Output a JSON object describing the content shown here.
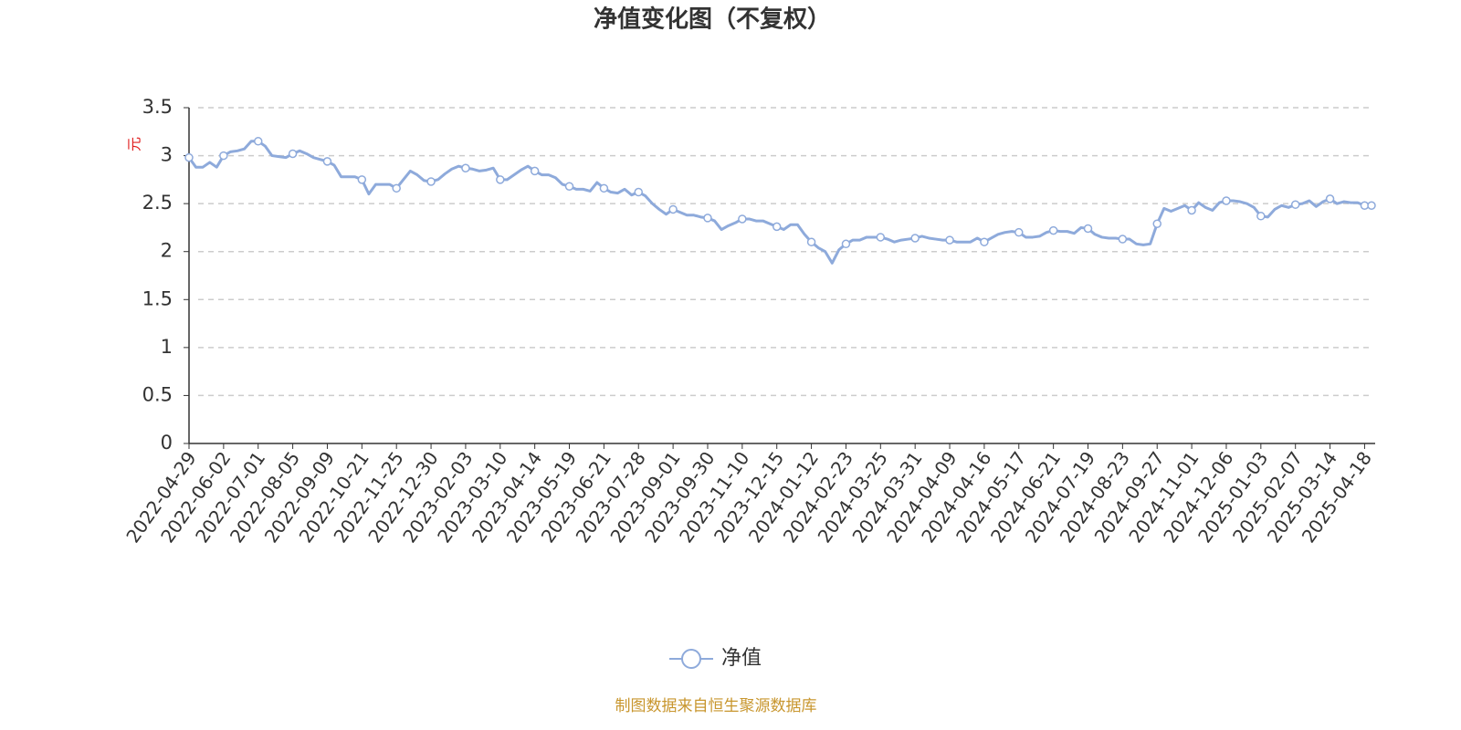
{
  "chart_data": {
    "type": "line",
    "title": "净值变化图（不复权）",
    "y_axis_label": "元",
    "source": "制图数据来自恒生聚源数据库",
    "categories": [
      "2022-04-29",
      null,
      null,
      null,
      null,
      "2022-06-02",
      null,
      null,
      null,
      null,
      "2022-07-01",
      null,
      null,
      null,
      null,
      "2022-08-05",
      null,
      null,
      null,
      null,
      "2022-09-09",
      null,
      null,
      null,
      null,
      "2022-10-21",
      null,
      null,
      null,
      null,
      "2022-11-25",
      null,
      null,
      null,
      null,
      "2022-12-30",
      null,
      null,
      null,
      null,
      "2023-02-03",
      null,
      null,
      null,
      null,
      "2023-03-10",
      null,
      null,
      null,
      null,
      "2023-04-14",
      null,
      null,
      null,
      null,
      "2023-05-19",
      null,
      null,
      null,
      null,
      "2023-06-21",
      null,
      null,
      null,
      null,
      "2023-07-28",
      null,
      null,
      null,
      null,
      "2023-09-01",
      null,
      null,
      null,
      null,
      "2023-09-30",
      null,
      null,
      null,
      null,
      "2023-11-10",
      null,
      null,
      null,
      null,
      "2023-12-15",
      null,
      null,
      null,
      null,
      "2024-01-12",
      null,
      null,
      null,
      null,
      "2024-02-23",
      null,
      null,
      null,
      null,
      "2024-03-25",
      null,
      null,
      null,
      null,
      "2024-03-31",
      null,
      null,
      null,
      null,
      "2024-04-09",
      null,
      null,
      null,
      null,
      "2024-04-16",
      null,
      null,
      null,
      null,
      "2024-05-17",
      null,
      null,
      null,
      null,
      "2024-06-21",
      null,
      null,
      null,
      null,
      "2024-07-19",
      null,
      null,
      null,
      null,
      "2024-08-23",
      null,
      null,
      null,
      null,
      "2024-09-27",
      null,
      null,
      null,
      null,
      "2024-11-01",
      null,
      null,
      null,
      null,
      "2024-12-06",
      null,
      null,
      null,
      null,
      "2025-01-03",
      null,
      null,
      null,
      null,
      "2025-02-07",
      null,
      null,
      null,
      null,
      "2025-03-14",
      null,
      null,
      null,
      null,
      "2025-04-18",
      null
    ],
    "series": [
      {
        "name": "净值",
        "color": "#8eaadb",
        "values": [
          2.98,
          2.88,
          2.88,
          2.93,
          2.88,
          3.0,
          3.04,
          3.05,
          3.07,
          3.15,
          3.15,
          3.1,
          3.0,
          2.99,
          2.98,
          3.02,
          3.05,
          3.02,
          2.98,
          2.96,
          2.94,
          2.9,
          2.78,
          2.78,
          2.78,
          2.75,
          2.6,
          2.7,
          2.7,
          2.7,
          2.66,
          2.75,
          2.84,
          2.8,
          2.74,
          2.73,
          2.75,
          2.81,
          2.86,
          2.89,
          2.87,
          2.86,
          2.84,
          2.85,
          2.87,
          2.75,
          2.75,
          2.8,
          2.85,
          2.89,
          2.84,
          2.8,
          2.8,
          2.77,
          2.7,
          2.68,
          2.65,
          2.65,
          2.63,
          2.72,
          2.66,
          2.62,
          2.61,
          2.65,
          2.59,
          2.62,
          2.58,
          2.5,
          2.44,
          2.39,
          2.44,
          2.41,
          2.38,
          2.38,
          2.36,
          2.35,
          2.32,
          2.23,
          2.27,
          2.3,
          2.34,
          2.34,
          2.32,
          2.32,
          2.29,
          2.26,
          2.23,
          2.28,
          2.28,
          2.18,
          2.1,
          2.04,
          2.0,
          1.88,
          2.02,
          2.08,
          2.12,
          2.12,
          2.15,
          2.15,
          2.15,
          2.13,
          2.1,
          2.12,
          2.13,
          2.14,
          2.16,
          2.14,
          2.13,
          2.12,
          2.12,
          2.1,
          2.1,
          2.1,
          2.14,
          2.1,
          2.14,
          2.18,
          2.2,
          2.21,
          2.2,
          2.15,
          2.15,
          2.16,
          2.2,
          2.22,
          2.21,
          2.21,
          2.19,
          2.25,
          2.24,
          2.18,
          2.15,
          2.14,
          2.14,
          2.13,
          2.13,
          2.08,
          2.07,
          2.08,
          2.29,
          2.45,
          2.42,
          2.45,
          2.48,
          2.43,
          2.51,
          2.46,
          2.43,
          2.51,
          2.53,
          2.53,
          2.52,
          2.5,
          2.46,
          2.37,
          2.36,
          2.44,
          2.48,
          2.46,
          2.49,
          2.5,
          2.53,
          2.47,
          2.52,
          2.55,
          2.5,
          2.52,
          2.51,
          2.51,
          2.48,
          2.48
        ]
      }
    ],
    "ylim": [
      0,
      3.5
    ],
    "yticks": [
      0,
      0.5,
      1,
      1.5,
      2,
      2.5,
      3,
      3.5
    ],
    "grid": true
  }
}
